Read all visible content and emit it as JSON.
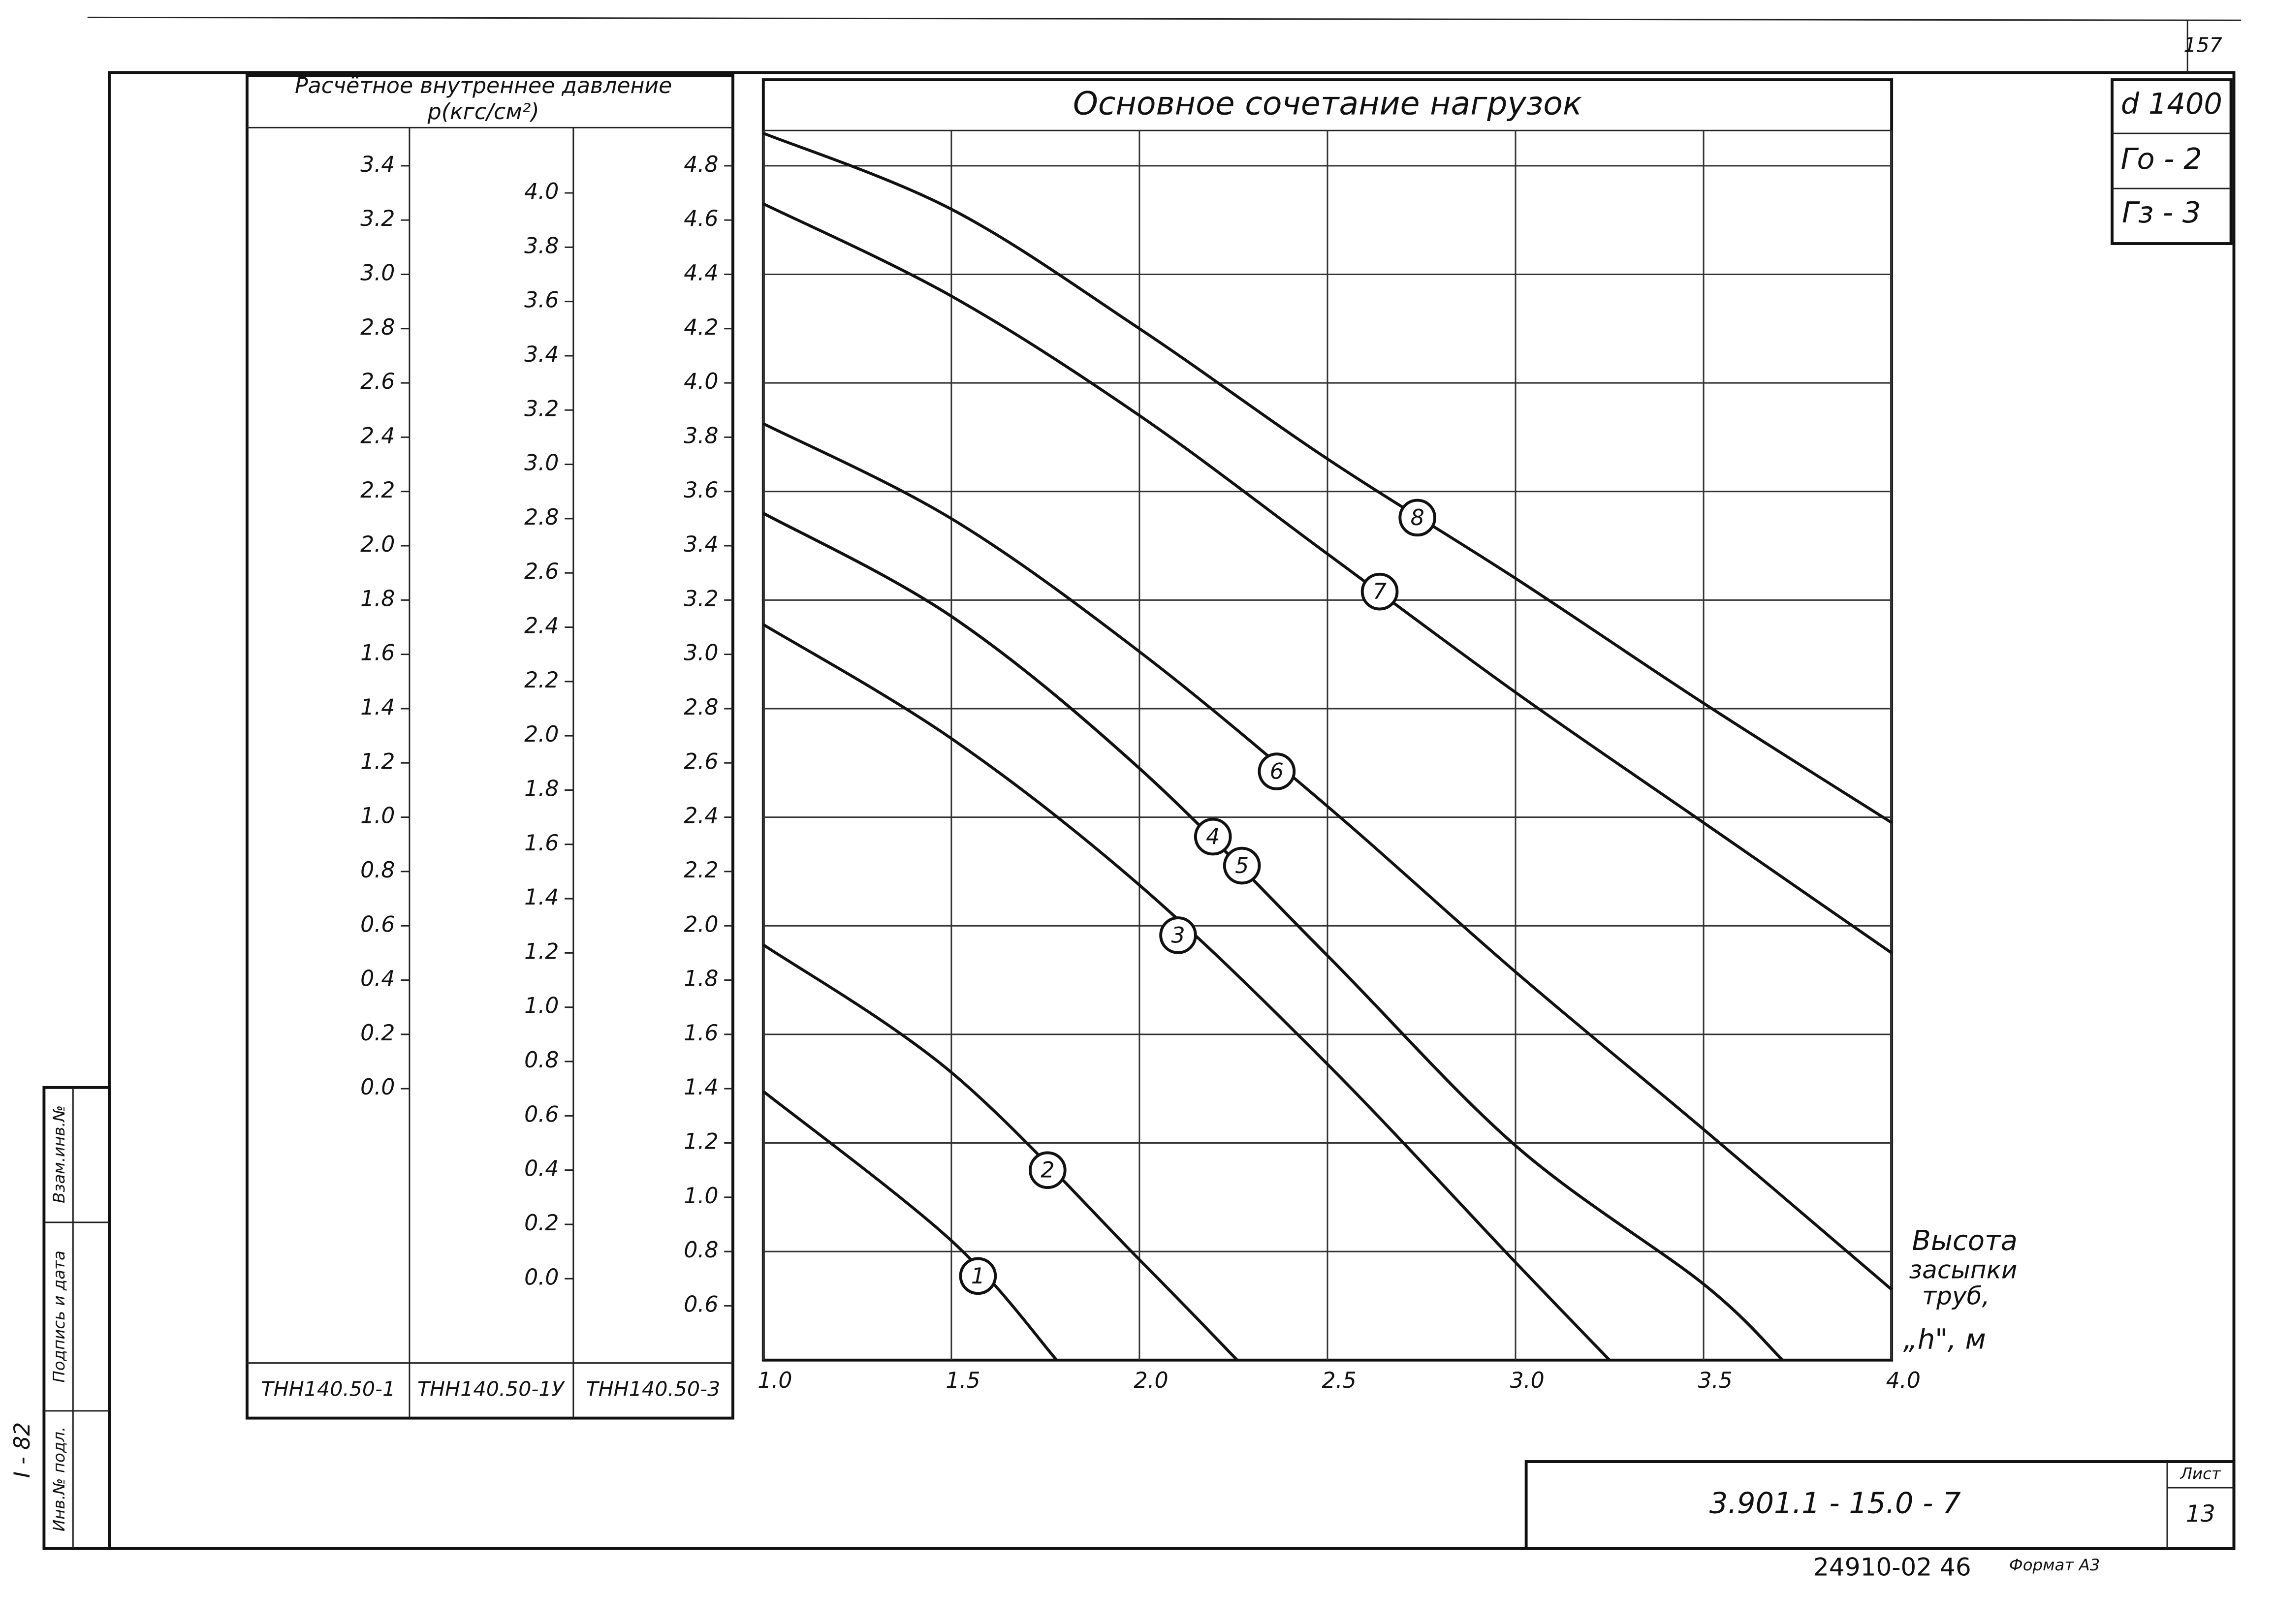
{
  "chart_data": {
    "type": "line",
    "title": "Основное сочетание нагрузок",
    "y_axis_title": "Расчётное внутреннее давление",
    "y_axis_unit": "р(кгс/см²)",
    "x_axis_label": [
      "Высота",
      "засыпки",
      "труб,",
      "„h\", м"
    ],
    "axis_names": [
      "ТНН140.50-1",
      "ТНН140.50-1У",
      "ТНН140.50-3"
    ],
    "xlim": [
      1.0,
      4.0
    ],
    "xticks": [
      {
        "value": 1.0,
        "label": "1.0"
      },
      1.5,
      {
        "value": 2.0,
        "label": "2.0"
      },
      2.5,
      {
        "value": 3.0,
        "label": "3.0"
      },
      3.5,
      {
        "value": 4.0,
        "label": "4.0"
      }
    ],
    "ylim": [
      0.4,
      4.93
    ],
    "yticks": [
      0.6,
      0.8,
      {
        "value": 1.0,
        "label": "1.0"
      },
      1.2,
      1.4,
      1.6,
      1.8,
      {
        "value": 2.0,
        "label": "2.0"
      },
      2.2,
      2.4,
      2.6,
      2.8,
      {
        "value": 3.0,
        "label": "3.0"
      },
      3.2,
      3.4,
      3.6,
      3.8,
      {
        "value": 4.0,
        "label": "4.0"
      },
      4.2,
      4.4,
      4.6,
      4.8
    ],
    "y2lim": [
      -0.3,
      4.23
    ],
    "y2ticks": [
      {
        "value": 0.0,
        "label": "0.0"
      },
      0.2,
      0.4,
      0.6,
      0.8,
      {
        "value": 1.0,
        "label": "1.0"
      },
      1.2,
      1.4,
      1.6,
      1.8,
      {
        "value": 2.0,
        "label": "2.0"
      },
      2.2,
      2.4,
      2.6,
      2.8,
      {
        "value": 3.0,
        "label": "3.0"
      },
      3.2,
      3.4,
      3.6,
      3.8,
      {
        "value": 4.0,
        "label": "4.0"
      }
    ],
    "y3lim": [
      -1.0,
      3.53
    ],
    "y3ticks": [
      {
        "value": 0.0,
        "label": "0.0"
      },
      0.2,
      0.4,
      0.6,
      0.8,
      {
        "value": 1.0,
        "label": "1.0"
      },
      1.2,
      1.4,
      1.6,
      1.8,
      {
        "value": 2.0,
        "label": "2.0"
      },
      2.2,
      2.4,
      2.6,
      2.8,
      {
        "value": 3.0,
        "label": "3.0"
      },
      3.2,
      3.4
    ],
    "grid": true,
    "series": [
      {
        "name": "1",
        "color": "#111111",
        "x": [
          1.0,
          1.5,
          1.78
        ],
        "values": [
          1.39,
          0.84,
          0.4
        ]
      },
      {
        "name": "2",
        "color": "#111111",
        "x": [
          1.0,
          1.5,
          2.0,
          2.26
        ],
        "values": [
          1.93,
          1.46,
          0.77,
          0.4
        ]
      },
      {
        "name": "3",
        "color": "#111111",
        "x": [
          1.0,
          1.5,
          2.0,
          2.5,
          3.0,
          3.25
        ],
        "values": [
          3.11,
          2.69,
          2.15,
          1.49,
          0.76,
          0.4
        ]
      },
      {
        "name": "4",
        "color": "#111111",
        "x": [
          1.0,
          1.5,
          2.0,
          2.5,
          3.0,
          3.5,
          3.71
        ],
        "values": [
          3.52,
          3.14,
          2.58,
          1.89,
          1.19,
          0.68,
          0.4
        ]
      },
      {
        "name": "5",
        "color": "#111111",
        "x": [
          1.0,
          1.5,
          2.0,
          2.5,
          3.0,
          3.5,
          3.71
        ],
        "values": [
          3.52,
          3.14,
          2.58,
          1.89,
          1.19,
          0.68,
          0.4
        ]
      },
      {
        "name": "6",
        "color": "#111111",
        "x": [
          1.0,
          1.5,
          2.0,
          2.5,
          3.0,
          3.5,
          4.0
        ],
        "values": [
          3.85,
          3.5,
          3.01,
          2.44,
          1.83,
          1.25,
          0.66
        ]
      },
      {
        "name": "7",
        "color": "#111111",
        "x": [
          1.0,
          1.5,
          2.0,
          2.5,
          3.0,
          3.5,
          4.0
        ],
        "values": [
          4.66,
          4.32,
          3.88,
          3.37,
          2.86,
          2.38,
          1.9
        ]
      },
      {
        "name": "8",
        "color": "#111111",
        "x": [
          1.0,
          1.5,
          2.0,
          2.5,
          3.0,
          3.5,
          4.0
        ],
        "values": [
          4.92,
          4.64,
          4.2,
          3.72,
          3.28,
          2.82,
          2.38
        ]
      }
    ]
  },
  "document": {
    "page_number": "157",
    "stamps": [
      "d 1400",
      "Го - 2",
      "Гз - 3"
    ],
    "code": "3.901.1 - 15.0 - 7",
    "sheet_label": "Лист",
    "sheet": "13",
    "footer": "24910-02  46",
    "format": "Формат А3",
    "side_number": "I - 82",
    "side_fields": [
      "Инв.№ подл.",
      "Подпись и дата",
      "Взам.инв.№"
    ]
  }
}
